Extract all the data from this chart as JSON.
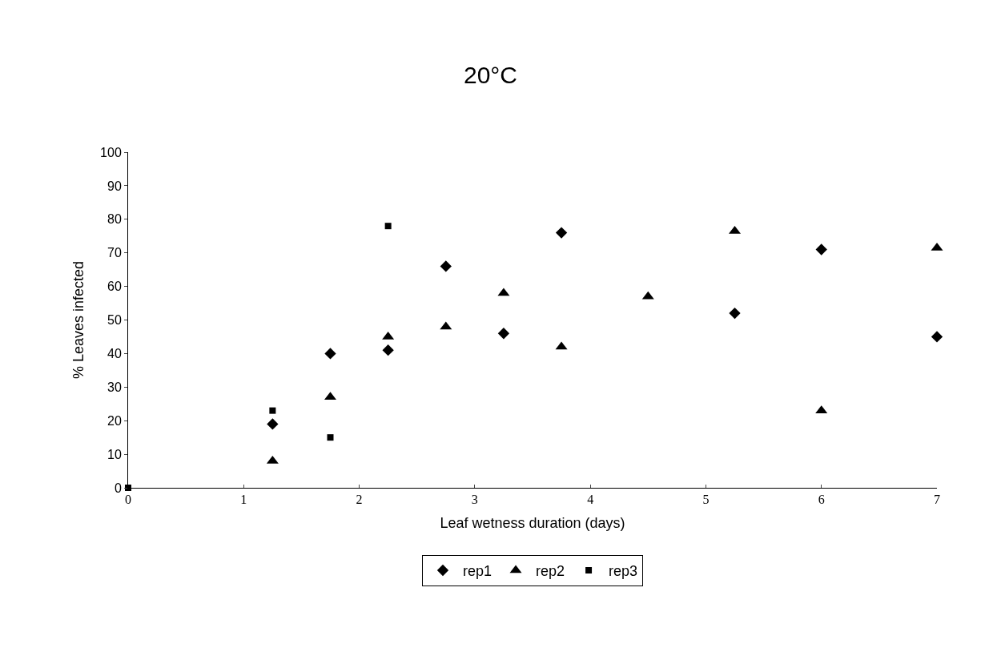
{
  "chart_data": {
    "type": "scatter",
    "title": "20°C",
    "xlabel": "Leaf wetness duration (days)",
    "ylabel": "% Leaves infected",
    "xlim": [
      0,
      7
    ],
    "xticks": [
      0,
      1,
      2,
      3,
      4,
      5,
      6,
      7
    ],
    "ylim": [
      0,
      100
    ],
    "yticks": [
      0,
      10,
      20,
      30,
      40,
      50,
      60,
      70,
      80,
      90,
      100
    ],
    "grid": false,
    "legend": "bottom",
    "series": [
      {
        "name": "rep1",
        "color": "#000000",
        "marker": "diamond",
        "x": [
          1.25,
          1.75,
          2.25,
          2.75,
          3.25,
          3.75,
          5.25,
          6,
          7
        ],
        "values": [
          19,
          40,
          41,
          66,
          46,
          76,
          52,
          71,
          45
        ]
      },
      {
        "name": "rep2",
        "color": "#000000",
        "marker": "triangle",
        "x": [
          1.25,
          1.75,
          2.25,
          2.75,
          3.25,
          3.75,
          4.5,
          5.25,
          6,
          7
        ],
        "values": [
          8,
          27,
          45,
          48,
          58,
          42,
          57,
          76.5,
          23,
          71.5
        ]
      },
      {
        "name": "rep3",
        "color": "#000000",
        "marker": "square",
        "x": [
          0,
          1.25,
          1.75,
          2.25
        ],
        "values": [
          0,
          23,
          15,
          78
        ]
      }
    ]
  }
}
